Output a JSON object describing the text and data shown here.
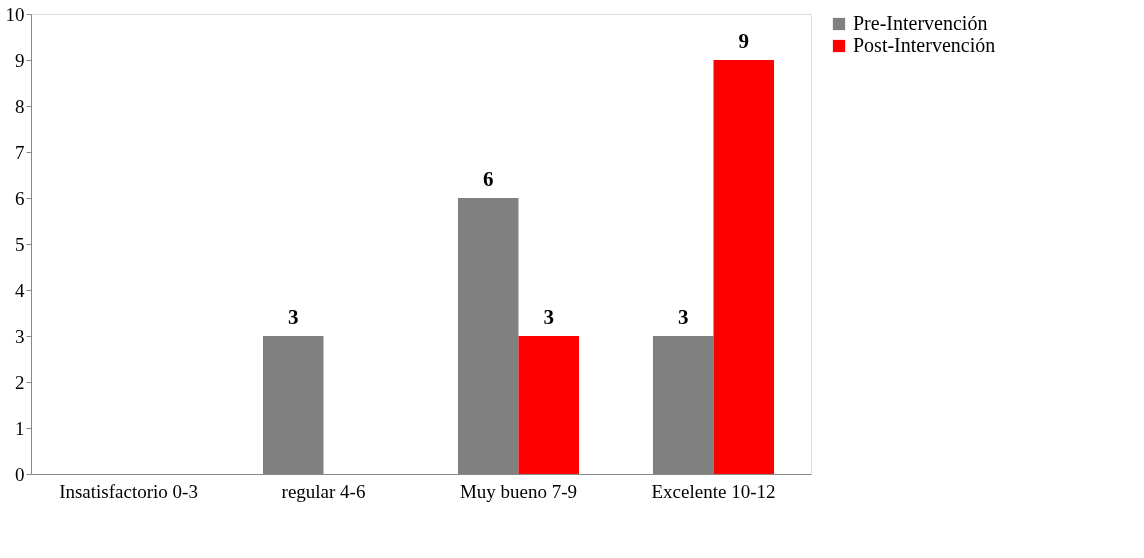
{
  "chart_data": {
    "type": "bar",
    "categories": [
      "Insatisfactorio 0-3",
      "regular 4-6",
      "Muy bueno 7-9",
      "Excelente 10-12"
    ],
    "series": [
      {
        "name": "Pre-Intervención",
        "color": "#808080",
        "values": [
          0,
          3,
          6,
          3
        ],
        "value_labels": [
          null,
          "3",
          "6",
          "3"
        ]
      },
      {
        "name": "Post-Intervención",
        "color": "#ff0000",
        "values": [
          0,
          0,
          3,
          9
        ],
        "value_labels": [
          null,
          null,
          "3",
          "9"
        ]
      }
    ],
    "ylim": [
      0,
      10
    ],
    "yticks": [
      0,
      1,
      2,
      3,
      4,
      5,
      6,
      7,
      8,
      9,
      10
    ],
    "grid": false,
    "legend": "right"
  }
}
